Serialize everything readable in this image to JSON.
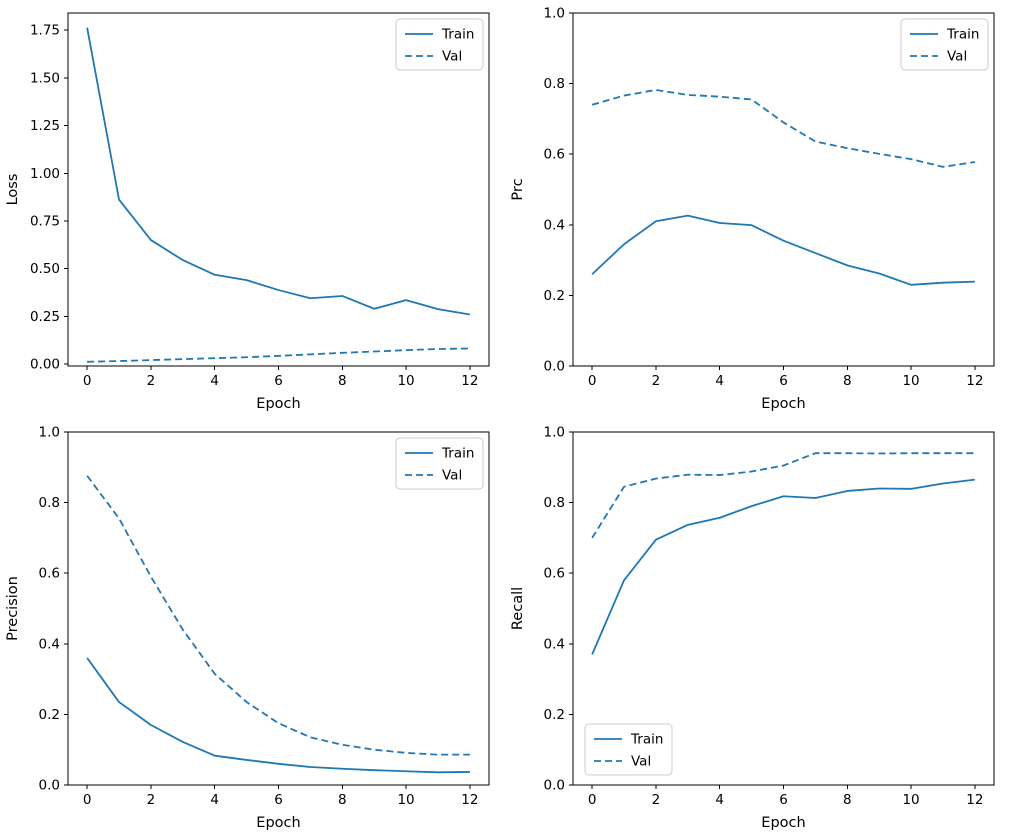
{
  "figure": {
    "background": "#ffffff",
    "accent_color": "#1f77b4",
    "axis_color": "#000000",
    "legend_border_color": "#cccccc",
    "legend_labels": [
      "Train",
      "Val"
    ]
  },
  "chart_data": [
    {
      "name": "loss",
      "type": "line",
      "title": "",
      "xlabel": "Epoch",
      "ylabel": "Loss",
      "x": [
        0,
        1,
        2,
        3,
        4,
        5,
        6,
        7,
        8,
        9,
        10,
        11,
        12
      ],
      "series": [
        {
          "name": "Train",
          "style": "solid",
          "values": [
            1.763,
            0.862,
            0.65,
            0.545,
            0.468,
            0.44,
            0.388,
            0.345,
            0.357,
            0.29,
            0.335,
            0.288,
            0.26
          ]
        },
        {
          "name": "Val",
          "style": "dashed",
          "values": [
            0.012,
            0.016,
            0.021,
            0.026,
            0.031,
            0.036,
            0.043,
            0.051,
            0.059,
            0.066,
            0.073,
            0.079,
            0.082
          ]
        }
      ],
      "xlim": [
        -0.6,
        12.6
      ],
      "ylim": [
        -0.01,
        1.84
      ],
      "xticks": [
        0,
        2,
        4,
        6,
        8,
        10,
        12
      ],
      "yticks": [
        0.0,
        0.25,
        0.5,
        0.75,
        1.0,
        1.25,
        1.5,
        1.75
      ],
      "ytick_decimals": 2,
      "legend_position": "upper-right",
      "grid": false
    },
    {
      "name": "prc",
      "type": "line",
      "title": "",
      "xlabel": "Epoch",
      "ylabel": "Prc",
      "x": [
        0,
        1,
        2,
        3,
        4,
        5,
        6,
        7,
        8,
        9,
        10,
        11,
        12
      ],
      "series": [
        {
          "name": "Train",
          "style": "solid",
          "values": [
            0.26,
            0.345,
            0.41,
            0.426,
            0.405,
            0.399,
            0.355,
            0.32,
            0.285,
            0.262,
            0.23,
            0.236,
            0.239
          ]
        },
        {
          "name": "Val",
          "style": "dashed",
          "values": [
            0.74,
            0.766,
            0.782,
            0.768,
            0.763,
            0.755,
            0.69,
            0.636,
            0.617,
            0.601,
            0.586,
            0.564,
            0.578
          ]
        }
      ],
      "xlim": [
        -0.6,
        12.6
      ],
      "ylim": [
        0.0,
        1.0
      ],
      "xticks": [
        0,
        2,
        4,
        6,
        8,
        10,
        12
      ],
      "yticks": [
        0.0,
        0.2,
        0.4,
        0.6,
        0.8,
        1.0
      ],
      "ytick_decimals": 1,
      "legend_position": "upper-right",
      "grid": false
    },
    {
      "name": "precision",
      "type": "line",
      "title": "",
      "xlabel": "Epoch",
      "ylabel": "Precision",
      "x": [
        0,
        1,
        2,
        3,
        4,
        5,
        6,
        7,
        8,
        9,
        10,
        11,
        12
      ],
      "series": [
        {
          "name": "Train",
          "style": "solid",
          "values": [
            0.36,
            0.235,
            0.17,
            0.122,
            0.083,
            0.071,
            0.06,
            0.051,
            0.046,
            0.042,
            0.039,
            0.036,
            0.037
          ]
        },
        {
          "name": "Val",
          "style": "dashed",
          "values": [
            0.876,
            0.755,
            0.59,
            0.44,
            0.315,
            0.235,
            0.175,
            0.135,
            0.114,
            0.1,
            0.091,
            0.086,
            0.086
          ]
        }
      ],
      "xlim": [
        -0.6,
        12.6
      ],
      "ylim": [
        0.0,
        1.0
      ],
      "xticks": [
        0,
        2,
        4,
        6,
        8,
        10,
        12
      ],
      "yticks": [
        0.0,
        0.2,
        0.4,
        0.6,
        0.8,
        1.0
      ],
      "ytick_decimals": 1,
      "legend_position": "upper-right",
      "grid": false
    },
    {
      "name": "recall",
      "type": "line",
      "title": "",
      "xlabel": "Epoch",
      "ylabel": "Recall",
      "x": [
        0,
        1,
        2,
        3,
        4,
        5,
        6,
        7,
        8,
        9,
        10,
        11,
        12
      ],
      "series": [
        {
          "name": "Train",
          "style": "solid",
          "values": [
            0.37,
            0.58,
            0.695,
            0.737,
            0.757,
            0.79,
            0.818,
            0.813,
            0.833,
            0.84,
            0.839,
            0.854,
            0.865
          ]
        },
        {
          "name": "Val",
          "style": "dashed",
          "values": [
            0.7,
            0.845,
            0.868,
            0.879,
            0.878,
            0.888,
            0.905,
            0.94,
            0.94,
            0.939,
            0.94,
            0.94,
            0.94
          ]
        }
      ],
      "xlim": [
        -0.6,
        12.6
      ],
      "ylim": [
        0.0,
        1.0
      ],
      "xticks": [
        0,
        2,
        4,
        6,
        8,
        10,
        12
      ],
      "yticks": [
        0.0,
        0.2,
        0.4,
        0.6,
        0.8,
        1.0
      ],
      "ytick_decimals": 1,
      "legend_position": "lower-left",
      "grid": false
    }
  ]
}
